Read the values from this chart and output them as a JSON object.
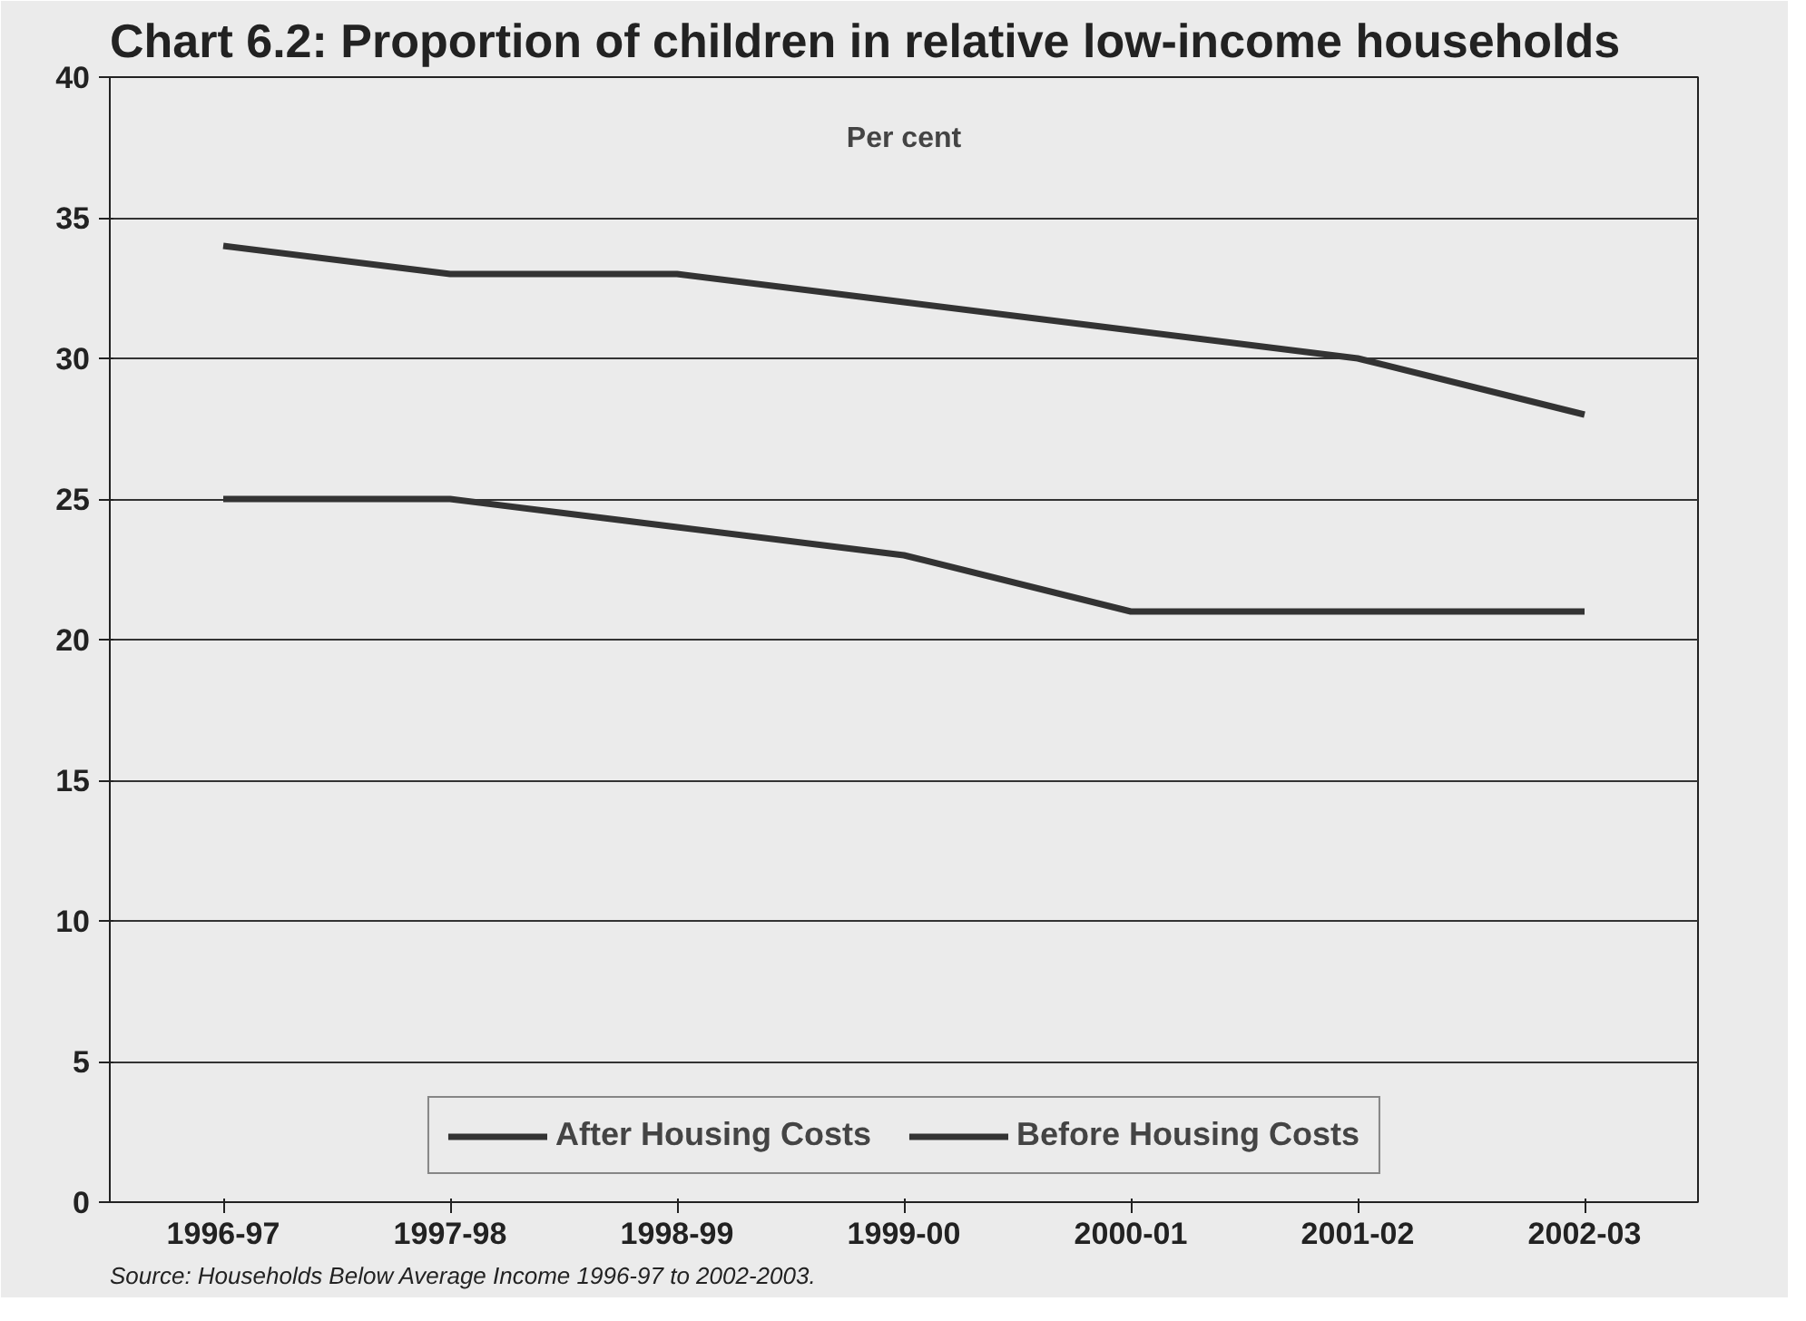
{
  "chart_data": {
    "type": "line",
    "title": "Chart 6.2: Proportion of children in relative low-income households",
    "categories": [
      "1996-97",
      "1997-98",
      "1998-99",
      "1999-00",
      "2000-01",
      "2001-02",
      "2002-03"
    ],
    "series": [
      {
        "name": "After Housing Costs",
        "color": "#333333",
        "values": [
          34,
          33,
          33,
          32,
          31,
          30,
          28
        ]
      },
      {
        "name": "Before Housing Costs",
        "color": "#333333",
        "values": [
          25,
          25,
          24,
          23,
          21,
          21,
          21
        ]
      }
    ],
    "ylim": [
      0,
      40
    ],
    "yticks": [
      0,
      5,
      10,
      15,
      20,
      25,
      30,
      35,
      40
    ],
    "grid": "y",
    "legend": "bottom",
    "marker": "none",
    "line_style": "solid",
    "annotations": [
      "Per cent",
      "Source: Households Below Average Income 1996-97 to 2002-2003."
    ]
  }
}
